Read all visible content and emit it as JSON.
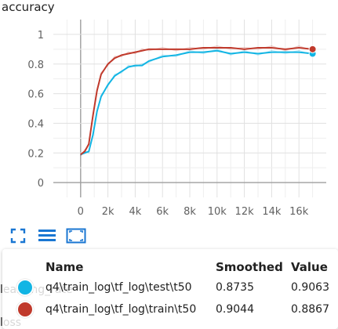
{
  "chart_data": {
    "type": "line",
    "title": "accuracy",
    "xlim": [
      -2000,
      18000
    ],
    "ylim": [
      -0.1,
      1.1
    ],
    "xticks": [
      0,
      2000,
      4000,
      6000,
      8000,
      10000,
      12000,
      14000,
      16000
    ],
    "xtick_labels": [
      "0",
      "2k",
      "4k",
      "6k",
      "8k",
      "10k",
      "12k",
      "14k",
      "16k"
    ],
    "yticks": [
      0,
      0.2,
      0.4,
      0.6,
      0.8,
      1
    ],
    "ytick_labels": [
      "0",
      "0.2",
      "0.4",
      "0.6",
      "0.8",
      "1"
    ],
    "grid": true,
    "series": [
      {
        "name": "q4\\train_log\\tf_log\\test\\t50",
        "color": "#12b5e4",
        "x": [
          0,
          300,
          600,
          900,
          1200,
          1500,
          2000,
          2500,
          3000,
          3500,
          4000,
          4500,
          5000,
          6000,
          7000,
          8000,
          9000,
          10000,
          11000,
          12000,
          13000,
          14000,
          15000,
          16000,
          17000
        ],
        "y": [
          0.19,
          0.2,
          0.21,
          0.32,
          0.48,
          0.58,
          0.66,
          0.72,
          0.75,
          0.78,
          0.79,
          0.79,
          0.82,
          0.85,
          0.86,
          0.88,
          0.88,
          0.89,
          0.87,
          0.88,
          0.87,
          0.88,
          0.88,
          0.88,
          0.87
        ]
      },
      {
        "name": "q4\\train_log\\tf_log\\train\\t50",
        "color": "#c0392b",
        "x": [
          0,
          300,
          600,
          900,
          1200,
          1500,
          2000,
          2500,
          3000,
          3500,
          4000,
          4500,
          5000,
          6000,
          7000,
          8000,
          9000,
          10000,
          11000,
          12000,
          13000,
          14000,
          15000,
          16000,
          17000
        ],
        "y": [
          0.19,
          0.21,
          0.26,
          0.45,
          0.62,
          0.73,
          0.8,
          0.84,
          0.86,
          0.87,
          0.88,
          0.89,
          0.9,
          0.9,
          0.9,
          0.9,
          0.91,
          0.91,
          0.91,
          0.9,
          0.91,
          0.91,
          0.9,
          0.91,
          0.9
        ]
      }
    ]
  },
  "toolbar": {
    "icons": [
      "expand-icon",
      "data-table-icon",
      "fit-domain-icon"
    ]
  },
  "below_labels": {
    "first": "learning_rate",
    "second": "loss"
  },
  "tooltip": {
    "headers": {
      "name": "Name",
      "smoothed": "Smoothed",
      "value": "Value"
    },
    "rows": [
      {
        "name": "q4\\train_log\\tf_log\\test\\t50",
        "smoothed": "0.8735",
        "value": "0.9063",
        "color": "#12b5e4"
      },
      {
        "name": "q4\\train_log\\tf_log\\train\\t50",
        "smoothed": "0.9044",
        "value": "0.8867",
        "color": "#c0392b"
      }
    ]
  }
}
